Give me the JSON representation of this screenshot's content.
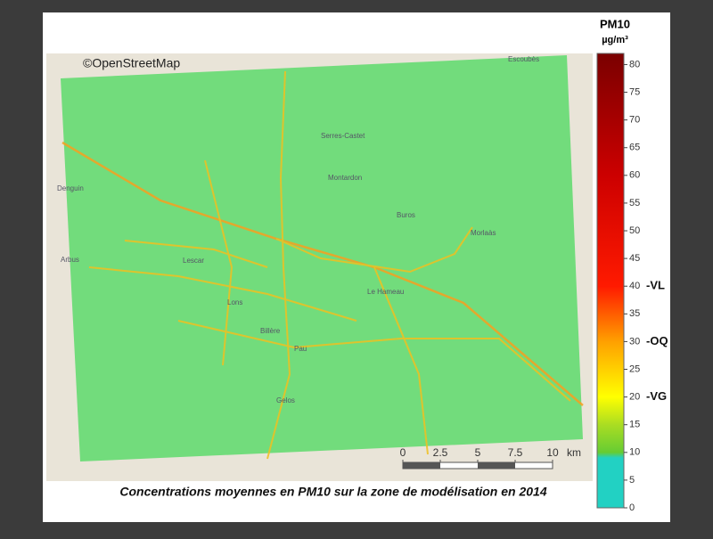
{
  "map": {
    "attribution": "©OpenStreetMap",
    "places": [
      "Pau",
      "Lons",
      "Billère",
      "Lescar",
      "Serres-Castet",
      "Montardon",
      "Buros",
      "Le Hameau",
      "Morlaàs",
      "Denguin",
      "Arbus",
      "Escoubès",
      "Gelos"
    ]
  },
  "colorbar": {
    "title": "PM10",
    "unit": "µg/m³",
    "lim": [
      0,
      82
    ],
    "ticks": [
      0,
      5,
      10,
      15,
      20,
      25,
      30,
      35,
      40,
      45,
      50,
      55,
      60,
      65,
      70,
      75,
      80
    ],
    "thresholds": [
      {
        "value": 40,
        "label": "-VL"
      },
      {
        "value": 30,
        "label": "-OQ"
      },
      {
        "value": 20,
        "label": "-VG"
      }
    ],
    "colors": [
      {
        "value": 0,
        "color": "#22d1c3"
      },
      {
        "value": 9,
        "color": "#22d1c3"
      },
      {
        "value": 10,
        "color": "#66cc33"
      },
      {
        "value": 15,
        "color": "#aadd22"
      },
      {
        "value": 20,
        "color": "#ffff00"
      },
      {
        "value": 30,
        "color": "#ffa000"
      },
      {
        "value": 40,
        "color": "#ff1a00"
      },
      {
        "value": 60,
        "color": "#cc0000"
      },
      {
        "value": 82,
        "color": "#7a0000"
      }
    ]
  },
  "scale_bar": {
    "ticks": [
      0,
      2.5,
      5,
      7.5,
      10
    ],
    "unit": "km"
  },
  "caption": "Concentrations moyennes en PM10 sur la zone de modélisation en 2014"
}
